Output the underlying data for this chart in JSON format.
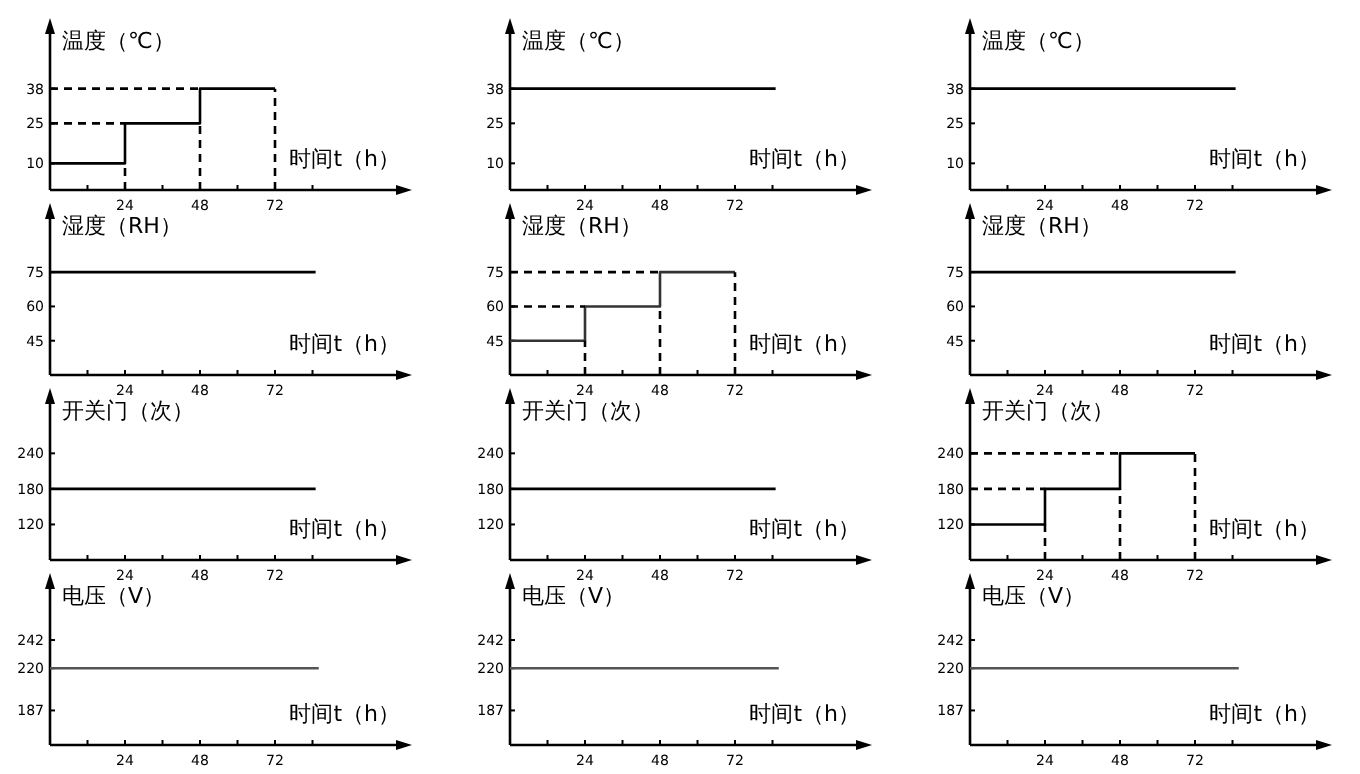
{
  "chart_data": [
    {
      "type": "step",
      "ylabel": "温度（℃）",
      "xlabel": "时间t（h）",
      "xlim": [
        0,
        112
      ],
      "xticks": [
        {
          "value": 12,
          "label": null
        },
        24,
        {
          "value": 36,
          "label": null
        },
        48,
        {
          "value": 60,
          "label": null
        },
        72,
        {
          "value": 84,
          "label": null
        }
      ],
      "ylim": [
        0,
        60
      ],
      "yticks": [
        10,
        25,
        38
      ],
      "series": [
        {
          "x": [
            0,
            24,
            48,
            72
          ],
          "values": [
            10,
            25,
            38,
            38
          ],
          "color": "#000000"
        },
        {
          "type": "line",
          "line_style": "dashed",
          "x": [
            0,
            24
          ],
          "values": [
            25,
            25
          ],
          "color": "#000000"
        },
        {
          "type": "line",
          "line_style": "dashed",
          "x": [
            0,
            48
          ],
          "values": [
            38,
            38
          ],
          "color": "#000000"
        },
        {
          "type": "line",
          "line_style": "dashed",
          "x": [
            24,
            24
          ],
          "values": [
            0,
            10
          ],
          "color": "#000000"
        },
        {
          "type": "line",
          "line_style": "dashed",
          "x": [
            48,
            48
          ],
          "values": [
            0,
            25
          ],
          "color": "#000000"
        },
        {
          "type": "line",
          "line_style": "dashed",
          "x": [
            72,
            72
          ],
          "values": [
            0,
            38
          ],
          "color": "#000000"
        }
      ]
    },
    {
      "type": "line",
      "ylabel": "温度（℃）",
      "xlabel": "时间t（h）",
      "xlim": [
        0,
        112
      ],
      "xticks": [
        {
          "value": 12,
          "label": null
        },
        24,
        {
          "value": 36,
          "label": null
        },
        48,
        {
          "value": 60,
          "label": null
        },
        72,
        {
          "value": 84,
          "label": null
        }
      ],
      "ylim": [
        0,
        60
      ],
      "yticks": [
        10,
        25,
        38
      ],
      "series": [
        {
          "x": [
            0,
            85
          ],
          "values": [
            38,
            38
          ],
          "color": "#000000"
        }
      ]
    },
    {
      "type": "line",
      "ylabel": "温度（℃）",
      "xlabel": "时间t（h）",
      "xlim": [
        0,
        112
      ],
      "xticks": [
        {
          "value": 12,
          "label": null
        },
        24,
        {
          "value": 36,
          "label": null
        },
        48,
        {
          "value": 60,
          "label": null
        },
        72,
        {
          "value": 84,
          "label": null
        }
      ],
      "ylim": [
        0,
        60
      ],
      "yticks": [
        10,
        25,
        38
      ],
      "series": [
        {
          "x": [
            0,
            85
          ],
          "values": [
            38,
            38
          ],
          "color": "#000000"
        }
      ]
    },
    {
      "type": "line",
      "ylabel": "湿度（RH）",
      "xlabel": "时间t（h）",
      "xlim": [
        0,
        112
      ],
      "xticks": [
        {
          "value": 12,
          "label": null
        },
        24,
        {
          "value": 36,
          "label": null
        },
        48,
        {
          "value": 60,
          "label": null
        },
        72,
        {
          "value": 84,
          "label": null
        }
      ],
      "ylim": [
        30,
        100
      ],
      "yticks": [
        45,
        60,
        75
      ],
      "series": [
        {
          "x": [
            0,
            85
          ],
          "values": [
            75,
            75
          ],
          "color": "#000000"
        }
      ]
    },
    {
      "type": "step",
      "ylabel": "湿度（RH）",
      "xlabel": "时间t（h）",
      "xlim": [
        0,
        112
      ],
      "xticks": [
        {
          "value": 12,
          "label": null
        },
        24,
        {
          "value": 36,
          "label": null
        },
        48,
        {
          "value": 60,
          "label": null
        },
        72,
        {
          "value": 84,
          "label": null
        }
      ],
      "ylim": [
        30,
        100
      ],
      "yticks": [
        45,
        60,
        75
      ],
      "series": [
        {
          "x": [
            0,
            24,
            48,
            72
          ],
          "values": [
            45,
            60,
            75,
            75
          ],
          "color": "#333333"
        },
        {
          "type": "line",
          "line_style": "dashed",
          "x": [
            0,
            24
          ],
          "values": [
            60,
            60
          ],
          "color": "#000000"
        },
        {
          "type": "line",
          "line_style": "dashed",
          "x": [
            0,
            48
          ],
          "values": [
            75,
            75
          ],
          "color": "#000000"
        },
        {
          "type": "line",
          "line_style": "dashed",
          "x": [
            24,
            24
          ],
          "values": [
            30,
            45
          ],
          "color": "#000000"
        },
        {
          "type": "line",
          "line_style": "dashed",
          "x": [
            48,
            48
          ],
          "values": [
            30,
            60
          ],
          "color": "#000000"
        },
        {
          "type": "line",
          "line_style": "dashed",
          "x": [
            72,
            72
          ],
          "values": [
            30,
            75
          ],
          "color": "#000000"
        }
      ]
    },
    {
      "type": "line",
      "ylabel": "湿度（RH）",
      "xlabel": "时间t（h）",
      "xlim": [
        0,
        112
      ],
      "xticks": [
        {
          "value": 12,
          "label": null
        },
        24,
        {
          "value": 36,
          "label": null
        },
        48,
        {
          "value": 60,
          "label": null
        },
        72,
        {
          "value": 84,
          "label": null
        }
      ],
      "ylim": [
        30,
        100
      ],
      "yticks": [
        45,
        60,
        75
      ],
      "series": [
        {
          "x": [
            0,
            85
          ],
          "values": [
            75,
            75
          ],
          "color": "#000000"
        }
      ]
    },
    {
      "type": "line",
      "ylabel": "开关门（次）",
      "xlabel": "时间t（h）",
      "xlim": [
        0,
        112
      ],
      "xticks": [
        {
          "value": 12,
          "label": null
        },
        24,
        {
          "value": 36,
          "label": null
        },
        48,
        {
          "value": 60,
          "label": null
        },
        72,
        {
          "value": 84,
          "label": null
        }
      ],
      "ylim": [
        60,
        330
      ],
      "yticks": [
        120,
        180,
        240
      ],
      "series": [
        {
          "x": [
            0,
            85
          ],
          "values": [
            180,
            180
          ],
          "color": "#000000"
        }
      ]
    },
    {
      "type": "line",
      "ylabel": "开关门（次）",
      "xlabel": "时间t（h）",
      "xlim": [
        0,
        112
      ],
      "xticks": [
        {
          "value": 12,
          "label": null
        },
        24,
        {
          "value": 36,
          "label": null
        },
        48,
        {
          "value": 60,
          "label": null
        },
        72,
        {
          "value": 84,
          "label": null
        }
      ],
      "ylim": [
        60,
        330
      ],
      "yticks": [
        120,
        180,
        240
      ],
      "series": [
        {
          "x": [
            0,
            85
          ],
          "values": [
            180,
            180
          ],
          "color": "#000000"
        }
      ]
    },
    {
      "type": "step",
      "ylabel": "开关门（次）",
      "xlabel": "时间t（h）",
      "xlim": [
        0,
        112
      ],
      "xticks": [
        {
          "value": 12,
          "label": null
        },
        24,
        {
          "value": 36,
          "label": null
        },
        48,
        {
          "value": 60,
          "label": null
        },
        72,
        {
          "value": 84,
          "label": null
        }
      ],
      "ylim": [
        60,
        330
      ],
      "yticks": [
        120,
        180,
        240
      ],
      "series": [
        {
          "x": [
            0,
            24,
            48,
            72
          ],
          "values": [
            120,
            180,
            240,
            240
          ],
          "color": "#000000"
        },
        {
          "type": "line",
          "line_style": "dashed",
          "x": [
            0,
            24
          ],
          "values": [
            180,
            180
          ],
          "color": "#000000"
        },
        {
          "type": "line",
          "line_style": "dashed",
          "x": [
            0,
            48
          ],
          "values": [
            240,
            240
          ],
          "color": "#000000"
        },
        {
          "type": "line",
          "line_style": "dashed",
          "x": [
            24,
            24
          ],
          "values": [
            60,
            120
          ],
          "color": "#000000"
        },
        {
          "type": "line",
          "line_style": "dashed",
          "x": [
            48,
            48
          ],
          "values": [
            60,
            180
          ],
          "color": "#000000"
        },
        {
          "type": "line",
          "line_style": "dashed",
          "x": [
            72,
            72
          ],
          "values": [
            60,
            240
          ],
          "color": "#000000"
        }
      ]
    },
    {
      "type": "line",
      "ylabel": "电压（V）",
      "xlabel": "时间t（h）",
      "xlim": [
        0,
        112
      ],
      "xticks": [
        {
          "value": 12,
          "label": null
        },
        24,
        {
          "value": 36,
          "label": null
        },
        48,
        {
          "value": 60,
          "label": null
        },
        72,
        {
          "value": 84,
          "label": null
        }
      ],
      "ylim": [
        160,
        285
      ],
      "yticks": [
        187,
        220,
        242
      ],
      "series": [
        {
          "x": [
            0,
            86
          ],
          "values": [
            220,
            220
          ],
          "color": "#555555"
        }
      ]
    },
    {
      "type": "line",
      "ylabel": "电压（V）",
      "xlabel": "时间t（h）",
      "xlim": [
        0,
        112
      ],
      "xticks": [
        {
          "value": 12,
          "label": null
        },
        24,
        {
          "value": 36,
          "label": null
        },
        48,
        {
          "value": 60,
          "label": null
        },
        72,
        {
          "value": 84,
          "label": null
        }
      ],
      "ylim": [
        160,
        285
      ],
      "yticks": [
        187,
        220,
        242
      ],
      "series": [
        {
          "x": [
            0,
            86
          ],
          "values": [
            220,
            220
          ],
          "color": "#555555"
        }
      ]
    },
    {
      "type": "line",
      "ylabel": "电压（V）",
      "xlabel": "时间t（h）",
      "xlim": [
        0,
        112
      ],
      "xticks": [
        {
          "value": 12,
          "label": null
        },
        24,
        {
          "value": 36,
          "label": null
        },
        48,
        {
          "value": 60,
          "label": null
        },
        72,
        {
          "value": 84,
          "label": null
        }
      ],
      "ylim": [
        160,
        285
      ],
      "yticks": [
        187,
        220,
        242
      ],
      "series": [
        {
          "x": [
            0,
            86
          ],
          "values": [
            220,
            220
          ],
          "color": "#555555"
        }
      ]
    }
  ]
}
